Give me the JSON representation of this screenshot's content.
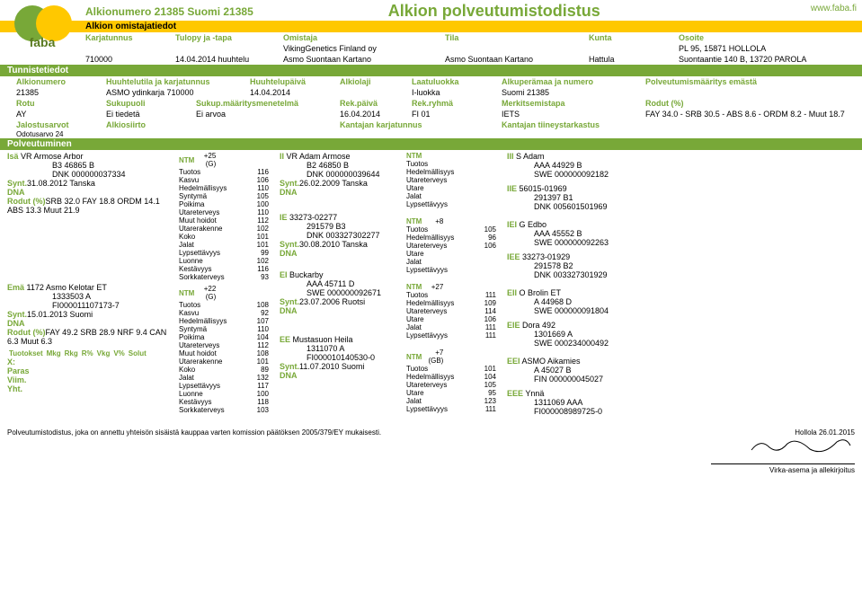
{
  "header": {
    "title_small": "Alkionumero 21385 Suomi 21385",
    "title_big": "Alkion polveutumistodistus",
    "url": "www.faba.fi",
    "section_owner": "Alkion omistajatiedot",
    "owner_hdr": {
      "karjatunnus": "Karjatunnus",
      "tulopy": "Tulopy ja -tapa",
      "omistaja": "Omistaja",
      "tila": "Tila",
      "kunta": "Kunta",
      "osoite": "Osoite"
    },
    "owner_rows": [
      {
        "karjatunnus": "",
        "tulopy": "",
        "omistaja": "VikingGenetics Finland oy",
        "tila": "",
        "kunta": "",
        "osoite": "PL 95, 15871 HOLLOLA"
      },
      {
        "karjatunnus": "710000",
        "tulopy": "14.04.2014 huuhtelu",
        "omistaja": "Asmo Suontaan Kartano",
        "tila": "Asmo Suontaan Kartano",
        "kunta": "Hattula",
        "osoite": "Suontaantie 140 B, 13720 PAROLA"
      }
    ],
    "section_id": "Tunnistetiedot",
    "id_hdr": {
      "alkionumero": "Alkionumero",
      "huuhtelutila": "Huuhtelutila ja karjatunnus",
      "huuhtelupaiva": "Huuhtelupäivä",
      "alkiolaji": "Alkiolaji",
      "laatuluokka": "Laatuluokka",
      "alkuperamaa": "Alkuperämaa ja numero",
      "polvmaaritys": "Polveutumismääritys emästä"
    },
    "id_row": {
      "alkionumero": "21385",
      "huuhtelutila": "ASMO ydinkarja 710000",
      "huuhtelupaiva": "14.04.2014",
      "alkiolaji": "",
      "laatuluokka": "I-luokka",
      "alkuperamaa": "Suomi 21385",
      "polvmaaritys": ""
    },
    "id_hdr2": {
      "rotu": "Rotu",
      "sukupuoli": "Sukupuoli",
      "sukup": "Sukup.määritysmenetelmä",
      "rekpaiva": "Rek.päivä",
      "rekryhma": "Rek.ryhmä",
      "merkitsemistapa": "Merkitsemistapa",
      "rodut": "Rodut (%)"
    },
    "id_row2": {
      "rotu": "AY",
      "sukupuoli": "Ei tiedetä",
      "sukup": "Ei arvoa",
      "rekpaiva": "16.04.2014",
      "rekryhma": "FI 01",
      "merkitsemistapa": "IETS",
      "rodut": "FAY 34.0 - SRB 30.5 - ABS 8.6 - ORDM 8.2 - Muut 18.7"
    },
    "jal_hdr": {
      "jal": "Jalostusarvot",
      "alkiosiirto": "Alkiosiirto",
      "kantajan_k": "Kantajan karjatunnus",
      "kantajan_t": "Kantajan tiineystarkastus"
    },
    "odotusarvo": "Odotusarvo 24",
    "section_polv": "Polveutuminen"
  },
  "ped": {
    "isa": {
      "label": "Isä",
      "name": "VR Armose Arbor",
      "l1": "B3 46865 B",
      "l2": "DNK 000000037334",
      "synt_l": "Synt.",
      "synt": "31.08.2012 Tanska",
      "dna": "DNA",
      "rodut_l": "Rodut (%)",
      "rodut": "SRB 32.0 FAY 18.8 ORDM 14.1 ABS 13.3 Muut 21.9",
      "ntm": "NTM",
      "ntm_v": "+25 (G)",
      "stats": [
        [
          "Tuotos",
          "116"
        ],
        [
          "Kasvu",
          "106"
        ],
        [
          "Hedelmällisyys",
          "110"
        ],
        [
          "Syntymä",
          "105"
        ],
        [
          "Poikima",
          "100"
        ],
        [
          "Utareterveys",
          "110"
        ],
        [
          "Muut hoidot",
          "112"
        ],
        [
          "Utarerakenne",
          "102"
        ],
        [
          "Koko",
          "101"
        ],
        [
          "Jalat",
          "101"
        ],
        [
          "Lypsettävyys",
          "99"
        ],
        [
          "Luonne",
          "102"
        ],
        [
          "Kestävyys",
          "116"
        ],
        [
          "Sorkkaterveys",
          "93"
        ]
      ]
    },
    "ii": {
      "label": "II",
      "name": "VR Adam Armose",
      "l1": "B2 46850 B",
      "l2": "DNK 000000039644",
      "synt_l": "Synt.",
      "synt": "26.02.2009 Tanska",
      "dna": "DNA",
      "ntm": "NTM",
      "stats": [
        [
          "Tuotos",
          ""
        ],
        [
          "Hedelmällisyys",
          ""
        ],
        [
          "Utareterveys",
          ""
        ],
        [
          "Utare",
          ""
        ],
        [
          "Jalat",
          ""
        ],
        [
          "Lypsettävyys",
          ""
        ]
      ]
    },
    "ie": {
      "label": "IE",
      "name": "33273-02277",
      "l1": "291579 B3",
      "l2": "DNK 003327302277",
      "synt_l": "Synt.",
      "synt": "30.08.2010 Tanska",
      "dna": "DNA",
      "ntm": "NTM",
      "ntm_v": "+8",
      "stats": [
        [
          "Tuotos",
          "105"
        ],
        [
          "Hedelmällisyys",
          "96"
        ],
        [
          "Utareterveys",
          "106"
        ],
        [
          "Utare",
          ""
        ],
        [
          "Jalat",
          ""
        ],
        [
          "Lypsettävyys",
          ""
        ]
      ]
    },
    "iii_a": {
      "label": "III",
      "name": "S Adam",
      "l1": "AAA 44929 B",
      "l2": "SWE 000000092182"
    },
    "iie": {
      "label": "IIE",
      "name": "56015-01969",
      "l1": "291397 B1",
      "l2": "DNK 005601501969"
    },
    "iei": {
      "label": "IEI",
      "name": "G Edbo",
      "l1": "AAA 45552 B",
      "l2": "SWE 000000092263"
    },
    "iee": {
      "label": "IEE",
      "name": "33273-01929",
      "l1": "291578 B2",
      "l2": "DNK 003327301929"
    },
    "ema": {
      "label": "Emä",
      "name": "1172 Asmo Kelotar ET",
      "l1": "1333503 A",
      "l2": "FI000011107173-7",
      "synt_l": "Synt.",
      "synt": "15.01.2013 Suomi",
      "dna": "DNA",
      "rodut_l": "Rodut (%)",
      "rodut": "FAY 49.2 SRB 28.9 NRF 9.4 CAN 6.3 Muut 6.3",
      "tbl_hdr": [
        "Tuotokset",
        "Mkg",
        "Rkg",
        "R%",
        "Vkg",
        "V%",
        "Solut"
      ],
      "rows_l": [
        "X:",
        "Paras",
        "Viim.",
        "Yht."
      ],
      "ntm": "NTM",
      "ntm_v": "+22 (G)",
      "stats": [
        [
          "Tuotos",
          "108"
        ],
        [
          "Kasvu",
          "92"
        ],
        [
          "Hedelmällisyys",
          "107"
        ],
        [
          "Syntymä",
          "110"
        ],
        [
          "Poikima",
          "104"
        ],
        [
          "Utareterveys",
          "112"
        ],
        [
          "Muut hoidot",
          "108"
        ],
        [
          "Utarerakenne",
          "101"
        ],
        [
          "Koko",
          "89"
        ],
        [
          "Jalat",
          "132"
        ],
        [
          "Lypsettävyys",
          "117"
        ],
        [
          "Luonne",
          "100"
        ],
        [
          "Kestävyys",
          "118"
        ],
        [
          "Sorkkaterveys",
          "103"
        ]
      ]
    },
    "ei": {
      "label": "EI",
      "name": "Buckarby",
      "l1": "AAA 45711 D",
      "l2": "SWE 000000092671",
      "synt_l": "Synt.",
      "synt": "23.07.2006 Ruotsi",
      "dna": "DNA",
      "ntm": "NTM",
      "ntm_v": "+27",
      "stats": [
        [
          "Tuotos",
          "111"
        ],
        [
          "Hedelmällisyys",
          "109"
        ],
        [
          "Utareterveys",
          "114"
        ],
        [
          "Utare",
          "106"
        ],
        [
          "Jalat",
          "111"
        ],
        [
          "Lypsettävyys",
          "111"
        ]
      ]
    },
    "ee": {
      "label": "EE",
      "name": "Mustasuon Heila",
      "l1": "1311070 A",
      "l2": "FI000010140530-0",
      "synt_l": "Synt.",
      "synt": "11.07.2010 Suomi",
      "dna": "DNA",
      "ntm": "NTM",
      "ntm_v": "+7 (GB)",
      "stats": [
        [
          "Tuotos",
          "101"
        ],
        [
          "Hedelmällisyys",
          "104"
        ],
        [
          "Utareterveys",
          "105"
        ],
        [
          "Utare",
          "95"
        ],
        [
          "Jalat",
          "123"
        ],
        [
          "Lypsettävyys",
          "111"
        ]
      ]
    },
    "eii": {
      "label": "EII",
      "name": "O Brolin ET",
      "l1": "A 44968 D",
      "l2": "SWE 000000091804"
    },
    "eie": {
      "label": "EIE",
      "name": "Dora 492",
      "l1": "1301669 A",
      "l2": "SWE 000234000492"
    },
    "eei": {
      "label": "EEI",
      "name": "ASMO Aikamies",
      "l1": "A 45027 B",
      "l2": "FIN 000000045027"
    },
    "eee": {
      "label": "EEE",
      "name": "Ynnä",
      "l1": "1311069 AAA",
      "l2": "FI000008989725-0"
    }
  },
  "footer": {
    "note": "Polveutumistodistus, joka on annettu yhteisön sisäistä kauppaa varten komission päätöksen 2005/379/EY mukaisesti.",
    "place_date": "Hollola 26.01.2015",
    "sig_label": "Virka-asema ja allekirjoitus"
  }
}
